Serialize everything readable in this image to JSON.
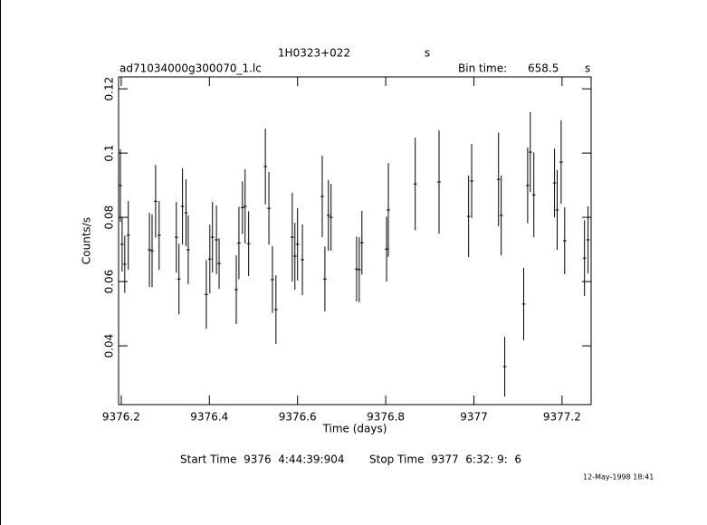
{
  "chart_data": {
    "type": "errorbar",
    "title": "1H0323+022",
    "title_unit": "s",
    "subtitle": "ad71034000g300070_1.lc",
    "bin_time_label": "Bin time:",
    "bin_time": 658.5,
    "bin_time_unit": "s",
    "xlabel": "Time (days)",
    "ylabel": "Counts/s",
    "start_time": "Start Time  9376  4:44:39:904",
    "stop_time": "Stop Time  9377  6:32: 9:  6",
    "date": "12-May-1998 18:41",
    "color": "#000000",
    "xlim": [
      9376.194,
      9377.266
    ],
    "ylim": [
      0.0217,
      0.1237
    ],
    "xticks": [
      9376.2,
      9376.4,
      9376.6,
      9376.8,
      9377,
      9377.2
    ],
    "yticks": [
      0.04,
      0.06,
      0.08,
      0.1,
      0.12
    ],
    "x": [
      9376.198,
      9376.202,
      9376.208,
      9376.216,
      9376.264,
      9376.27,
      9376.278,
      9376.286,
      9376.325,
      9376.331,
      9376.339,
      9376.347,
      9376.352,
      9376.393,
      9376.401,
      9376.407,
      9376.416,
      9376.422,
      9376.461,
      9376.467,
      9376.475,
      9376.481,
      9376.489,
      9376.527,
      9376.535,
      9376.543,
      9376.551,
      9376.588,
      9376.594,
      9376.6,
      9376.611,
      9376.656,
      9376.662,
      9376.67,
      9376.676,
      9376.734,
      9376.74,
      9376.746,
      9376.802,
      9376.806,
      9376.867,
      9376.921,
      9376.988,
      9376.995,
      9377.056,
      9377.062,
      9377.07,
      9377.113,
      9377.122,
      9377.128,
      9377.136,
      9377.183,
      9377.189,
      9377.198,
      9377.206,
      9377.251,
      9377.259
    ],
    "values": [
      0.0899,
      0.0716,
      0.0654,
      0.0744,
      0.0699,
      0.0696,
      0.085,
      0.0744,
      0.0738,
      0.0608,
      0.0834,
      0.0814,
      0.0699,
      0.056,
      0.067,
      0.0738,
      0.073,
      0.0656,
      0.0575,
      0.072,
      0.083,
      0.0834,
      0.0718,
      0.0958,
      0.0828,
      0.0606,
      0.0513,
      0.0738,
      0.0679,
      0.0716,
      0.0668,
      0.0865,
      0.0608,
      0.0806,
      0.08,
      0.0639,
      0.0637,
      0.0721,
      0.0701,
      0.0823,
      0.0904,
      0.091,
      0.0803,
      0.0913,
      0.0918,
      0.0806,
      0.0335,
      0.053,
      0.0899,
      0.1003,
      0.087,
      0.0907,
      0.0823,
      0.0972,
      0.0727,
      0.0673,
      0.073
    ],
    "errors": [
      0.0113,
      0.0085,
      0.0089,
      0.0107,
      0.0115,
      0.0113,
      0.0113,
      0.0107,
      0.011,
      0.011,
      0.0118,
      0.0104,
      0.0107,
      0.0107,
      0.0107,
      0.011,
      0.0107,
      0.0079,
      0.0107,
      0.0113,
      0.0082,
      0.0115,
      0.0101,
      0.0118,
      0.0113,
      0.0104,
      0.0107,
      0.0138,
      0.0104,
      0.0113,
      0.011,
      0.0127,
      0.0101,
      0.011,
      0.0104,
      0.0101,
      0.0101,
      0.0099,
      0.0101,
      0.0146,
      0.0144,
      0.0161,
      0.0127,
      0.0115,
      0.0146,
      0.0124,
      0.0093,
      0.0113,
      0.0118,
      0.0124,
      0.0132,
      0.0107,
      0.0124,
      0.013,
      0.0104,
      0.0118,
      0.0104
    ]
  }
}
